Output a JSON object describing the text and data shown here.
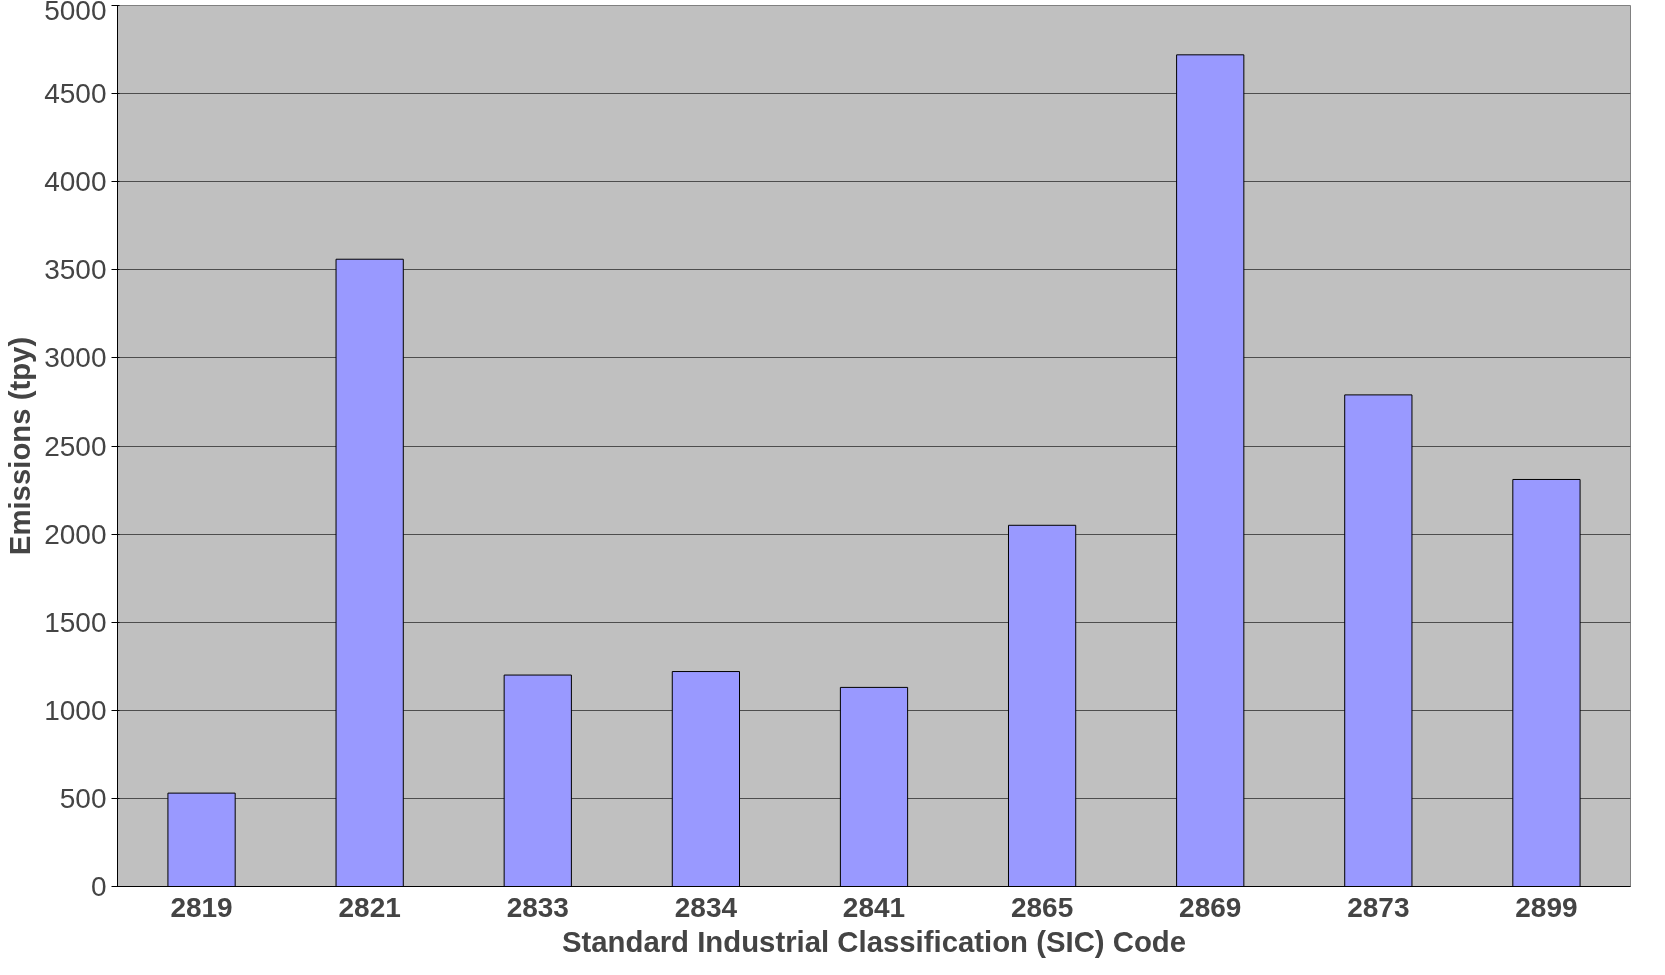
{
  "chart_data": {
    "type": "bar",
    "xlabel": "Standard Industrial Classification (SIC) Code",
    "ylabel": "Emissions (tpy)",
    "categories": [
      "2819",
      "2821",
      "2833",
      "2834",
      "2841",
      "2865",
      "2869",
      "2873",
      "2899"
    ],
    "values": [
      530,
      3560,
      1200,
      1220,
      1130,
      2050,
      4720,
      2790,
      2310
    ],
    "color": "#9999ff",
    "ylim": [
      0,
      5000
    ],
    "yticks": [
      0,
      500,
      1000,
      1500,
      2000,
      2500,
      3000,
      3500,
      4000,
      4500,
      5000
    ],
    "grid": "y"
  }
}
